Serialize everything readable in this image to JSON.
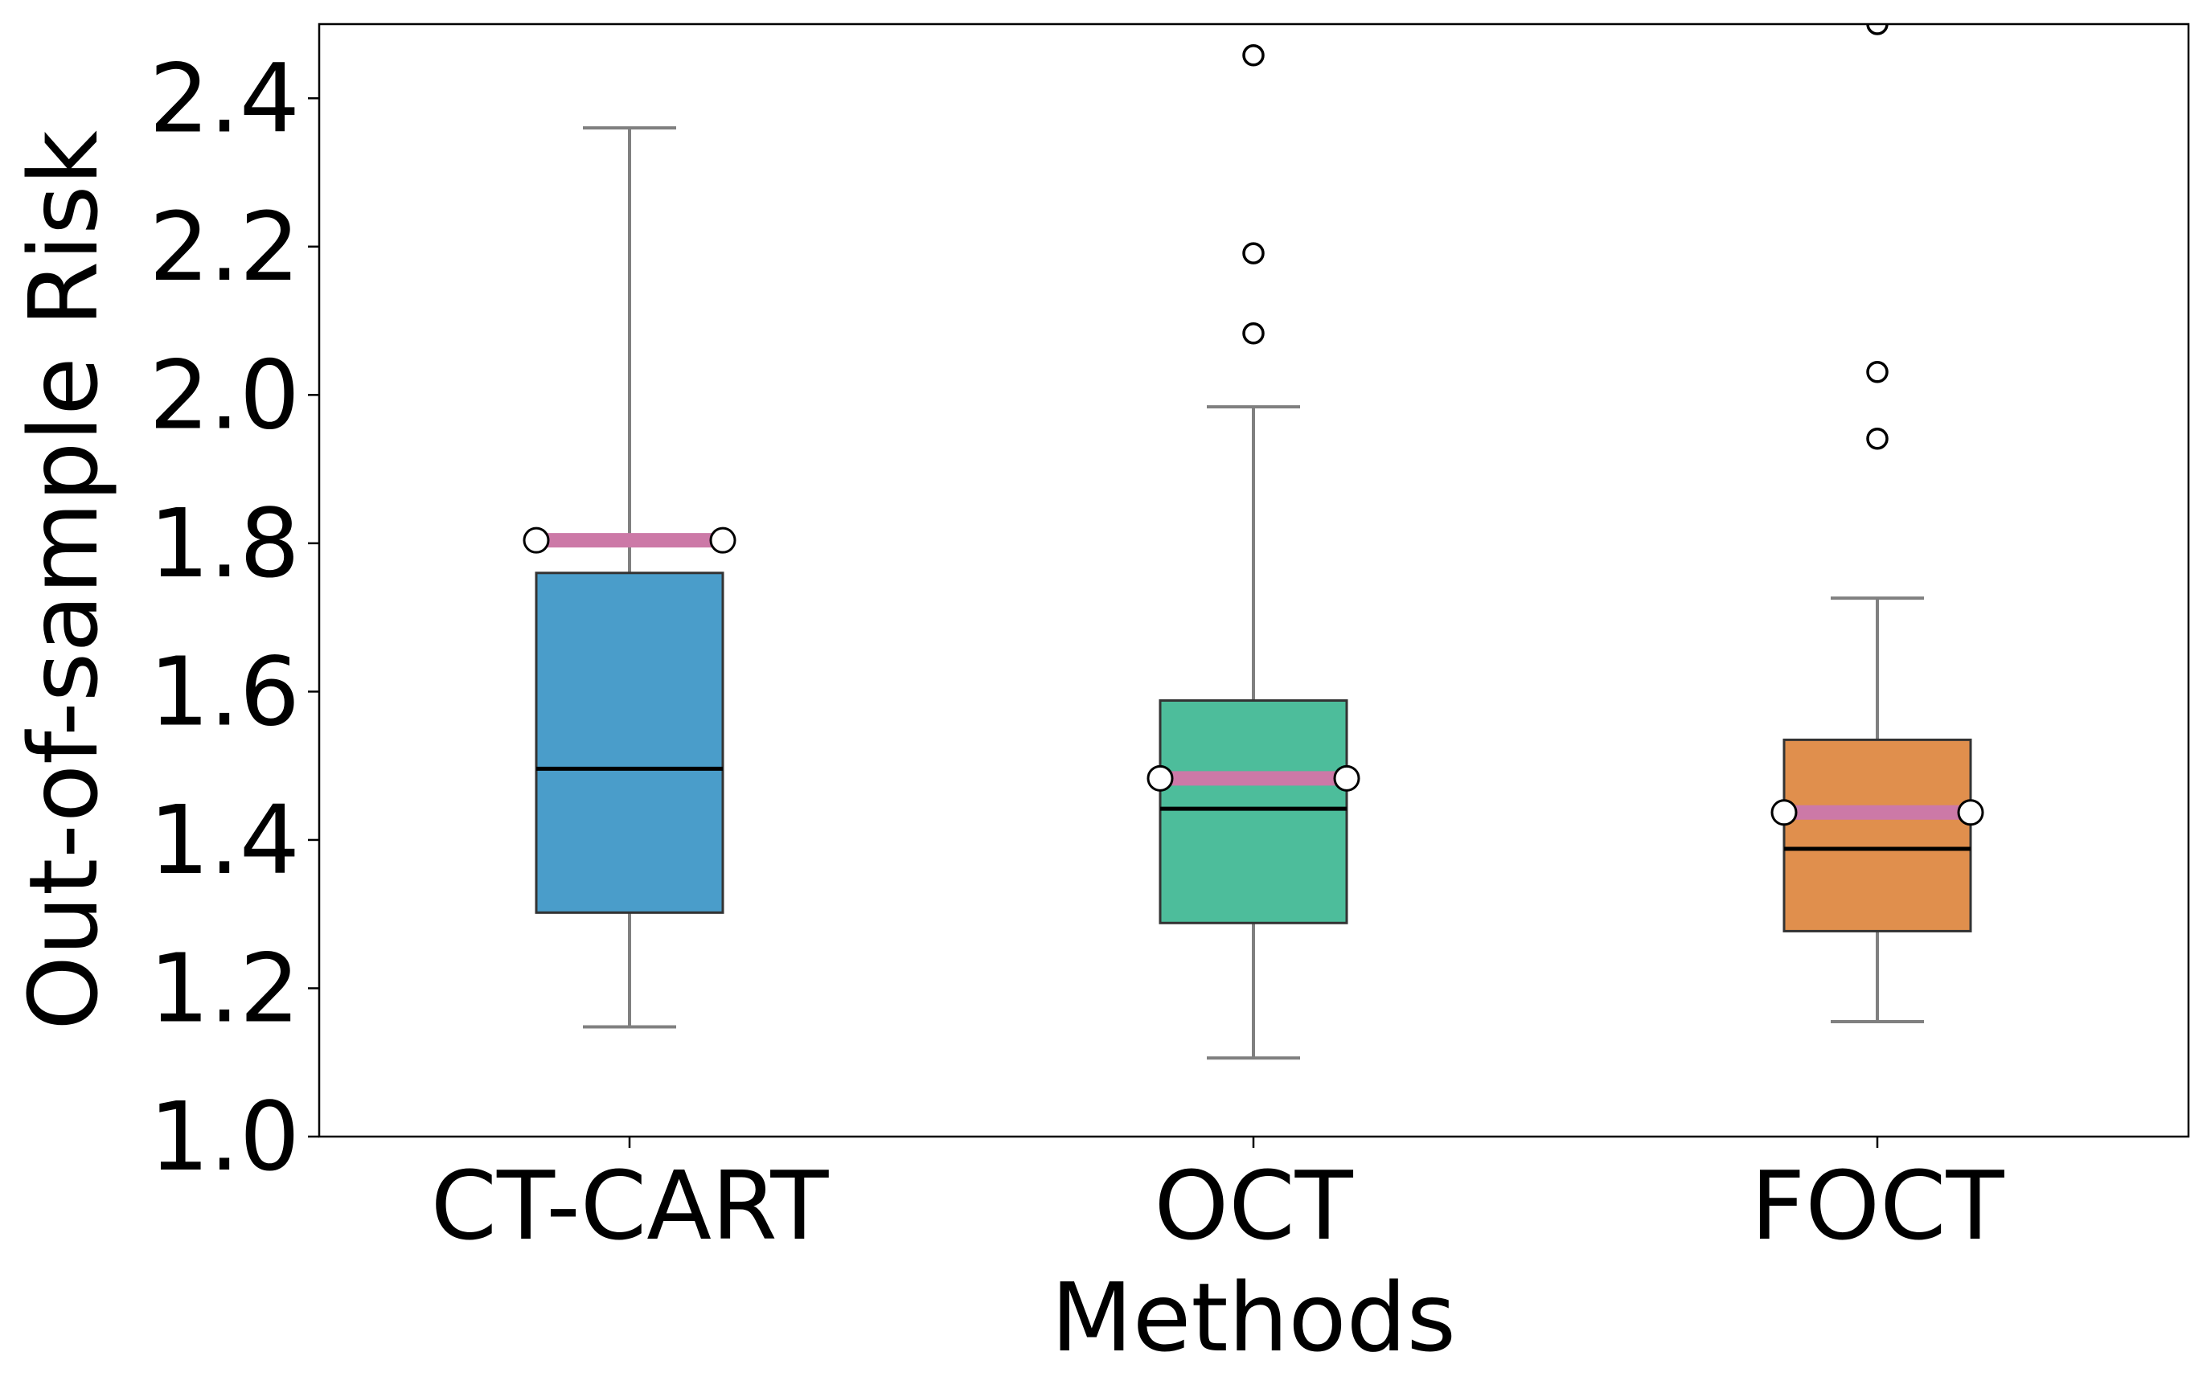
{
  "chart_data": {
    "type": "box",
    "title": "",
    "xlabel": "Methods",
    "ylabel": "Out-of-sample Risk",
    "ylim": [
      1.0,
      2.5
    ],
    "yticks": [
      "1.0",
      "1.2",
      "1.4",
      "1.6",
      "1.8",
      "2.0",
      "2.2",
      "2.4"
    ],
    "grid": false,
    "categories": [
      "CT-CART",
      "OCT",
      "FOCT"
    ],
    "boxes": [
      {
        "name": "CT-CART",
        "color": "#4a9dca",
        "whisker_low": 1.148,
        "q1": 1.302,
        "median": 1.496,
        "q3": 1.76,
        "whisker_high": 2.36,
        "mean": 1.804,
        "outliers": []
      },
      {
        "name": "OCT",
        "color": "#4dbd9b",
        "whisker_low": 1.106,
        "q1": 1.288,
        "median": 1.442,
        "q3": 1.588,
        "whisker_high": 1.984,
        "mean": 1.483,
        "outliers": [
          2.083,
          2.191,
          2.458
        ]
      },
      {
        "name": "FOCT",
        "color": "#e08f4d",
        "whisker_low": 1.155,
        "q1": 1.277,
        "median": 1.388,
        "q3": 1.535,
        "whisker_high": 1.726,
        "mean": 1.437,
        "outliers": [
          1.941,
          2.031,
          2.5
        ]
      }
    ],
    "mean_line_color": "#cc79a7"
  }
}
